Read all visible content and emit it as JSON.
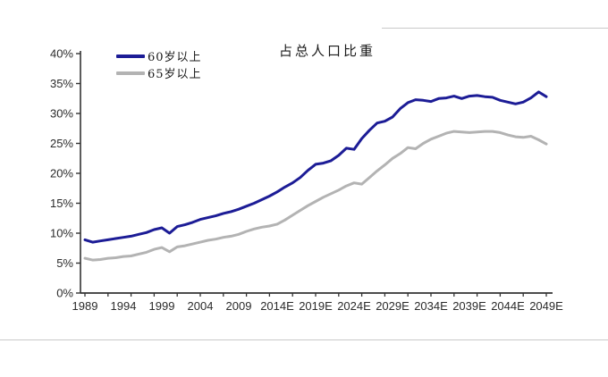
{
  "title": "占总人口比重",
  "legend": {
    "items": [
      {
        "label": "60岁以上",
        "color": "#1c1c96"
      },
      {
        "label": "65岁以上",
        "color": "#b3b3b3"
      }
    ]
  },
  "chart_data": {
    "type": "line",
    "title": "占总人口比重",
    "grid": false,
    "legend_position": "top-left-inside",
    "ylim": [
      0,
      40
    ],
    "y_tick_step": 5,
    "y_tick_labels": [
      "0%",
      "5%",
      "10%",
      "15%",
      "20%",
      "25%",
      "30%",
      "35%",
      "40%"
    ],
    "x_tick_labels": [
      "1989",
      "1994",
      "1999",
      "2004",
      "2009",
      "2014E",
      "2019E",
      "2024E",
      "2029E",
      "2034E",
      "2039E",
      "2044E",
      "2049E"
    ],
    "x_label_interval_years": 5,
    "x_minor_tick_interval_years": 3,
    "x": [
      1989,
      1990,
      1991,
      1992,
      1993,
      1994,
      1995,
      1996,
      1997,
      1998,
      1999,
      2000,
      2001,
      2002,
      2003,
      2004,
      2005,
      2006,
      2007,
      2008,
      2009,
      2010,
      2011,
      2012,
      2013,
      2014,
      2015,
      2016,
      2017,
      2018,
      2019,
      2020,
      2021,
      2022,
      2023,
      2024,
      2025,
      2026,
      2027,
      2028,
      2029,
      2030,
      2031,
      2032,
      2033,
      2034,
      2035,
      2036,
      2037,
      2038,
      2039,
      2040,
      2041,
      2042,
      2043,
      2044,
      2045,
      2046,
      2047,
      2048,
      2049
    ],
    "series": [
      {
        "name": "60岁以上",
        "color": "#1c1c96",
        "stroke_width": 3,
        "values": [
          8.9,
          8.5,
          8.7,
          8.9,
          9.1,
          9.3,
          9.5,
          9.8,
          10.1,
          10.6,
          10.9,
          10.0,
          11.1,
          11.4,
          11.8,
          12.3,
          12.6,
          12.9,
          13.3,
          13.6,
          14.0,
          14.5,
          15.0,
          15.6,
          16.2,
          16.9,
          17.7,
          18.4,
          19.3,
          20.5,
          21.5,
          21.7,
          22.1,
          23.0,
          24.2,
          24.0,
          25.8,
          27.2,
          28.4,
          28.7,
          29.4,
          30.8,
          31.8,
          32.3,
          32.2,
          32.0,
          32.5,
          32.6,
          32.9,
          32.5,
          32.9,
          33.0,
          32.8,
          32.7,
          32.2,
          31.9,
          31.6,
          31.9,
          32.6,
          33.6,
          32.8
        ]
      },
      {
        "name": "65岁以上",
        "color": "#b3b3b3",
        "stroke_width": 3,
        "values": [
          5.8,
          5.5,
          5.6,
          5.8,
          5.9,
          6.1,
          6.2,
          6.5,
          6.8,
          7.3,
          7.6,
          6.9,
          7.7,
          7.9,
          8.2,
          8.5,
          8.8,
          9.0,
          9.3,
          9.5,
          9.8,
          10.3,
          10.7,
          11.0,
          11.2,
          11.5,
          12.2,
          13.0,
          13.8,
          14.6,
          15.3,
          16.0,
          16.6,
          17.2,
          17.9,
          18.4,
          18.2,
          19.3,
          20.4,
          21.4,
          22.5,
          23.3,
          24.3,
          24.1,
          25.0,
          25.7,
          26.2,
          26.7,
          27.0,
          26.9,
          26.8,
          26.9,
          27.0,
          27.0,
          26.8,
          26.4,
          26.1,
          26.0,
          26.2,
          25.6,
          24.9
        ]
      }
    ]
  }
}
